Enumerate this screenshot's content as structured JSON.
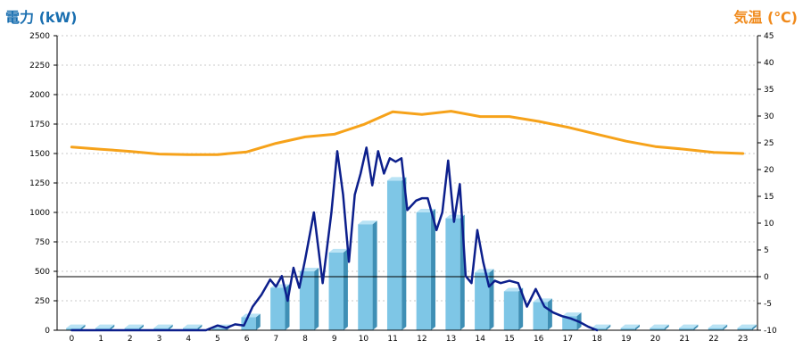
{
  "chart_data": {
    "type": "bar+line",
    "left_axis": {
      "label": "電力 (kW)",
      "ylim": [
        0,
        2500
      ],
      "ticks": [
        0,
        250,
        500,
        750,
        1000,
        1250,
        1500,
        1750,
        2000,
        2250,
        2500
      ]
    },
    "right_axis": {
      "label": "気温 (℃)",
      "ylim": [
        -10,
        45
      ],
      "ticks": [
        -10,
        -5,
        0,
        5,
        10,
        15,
        20,
        25,
        30,
        35,
        40,
        45
      ]
    },
    "categories": [
      "0",
      "1",
      "2",
      "3",
      "4",
      "5",
      "6",
      "7",
      "8",
      "9",
      "10",
      "11",
      "12",
      "13",
      "14",
      "15",
      "16",
      "17",
      "18",
      "19",
      "20",
      "21",
      "22",
      "23"
    ],
    "grid": true,
    "colors": {
      "bar": "#7ec6e6",
      "bar_dark": "#3f8fb5",
      "bar_top": "#b9e3f5",
      "power_line": "#0c1f8c",
      "temp_line": "#f6a21a",
      "grid": "#c8c8c8"
    },
    "series": [
      {
        "kind": "bar",
        "axis": "left",
        "values": [
          0,
          0,
          0,
          0,
          0,
          0,
          110,
          360,
          500,
          660,
          900,
          1270,
          1000,
          950,
          490,
          330,
          240,
          120,
          0,
          0,
          0,
          0,
          0,
          0
        ]
      },
      {
        "kind": "line",
        "axis": "left",
        "x": [
          0,
          1,
          2,
          3,
          4,
          4.6,
          5,
          5.3,
          5.6,
          5.9,
          6.2,
          6.5,
          6.8,
          7.0,
          7.2,
          7.4,
          7.6,
          7.8,
          8.0,
          8.3,
          8.6,
          8.9,
          9.1,
          9.3,
          9.5,
          9.7,
          9.9,
          10.1,
          10.3,
          10.5,
          10.7,
          10.9,
          11.1,
          11.3,
          11.5,
          11.8,
          12.0,
          12.2,
          12.5,
          12.7,
          12.9,
          13.1,
          13.3,
          13.5,
          13.7,
          13.9,
          14.1,
          14.3,
          14.5,
          14.7,
          15.0,
          15.3,
          15.6,
          15.9,
          16.2,
          16.5,
          16.8,
          17.1,
          17.4,
          17.7,
          18
        ],
        "values": [
          0,
          0,
          0,
          0,
          0,
          0,
          40,
          20,
          50,
          40,
          200,
          300,
          430,
          370,
          460,
          250,
          530,
          360,
          600,
          1000,
          400,
          1000,
          1520,
          1150,
          580,
          1150,
          1330,
          1550,
          1230,
          1520,
          1330,
          1460,
          1430,
          1460,
          1020,
          1100,
          1120,
          1120,
          850,
          1000,
          1440,
          920,
          1240,
          460,
          400,
          850,
          580,
          370,
          420,
          400,
          420,
          400,
          200,
          350,
          200,
          150,
          120,
          100,
          70,
          30,
          0
        ]
      },
      {
        "kind": "line",
        "axis": "right",
        "x": [
          0,
          1,
          2,
          3,
          4,
          5,
          6,
          7,
          8,
          9,
          10,
          11,
          12,
          13,
          14,
          15,
          16,
          17,
          18,
          19,
          20,
          21,
          22,
          23
        ],
        "values": [
          24.2,
          23.8,
          23.4,
          22.9,
          22.8,
          22.8,
          23.3,
          24.9,
          26.1,
          26.6,
          28.4,
          30.8,
          30.3,
          30.9,
          29.9,
          29.9,
          29.0,
          27.9,
          26.6,
          25.3,
          24.3,
          23.8,
          23.2,
          23.0
        ]
      }
    ]
  }
}
